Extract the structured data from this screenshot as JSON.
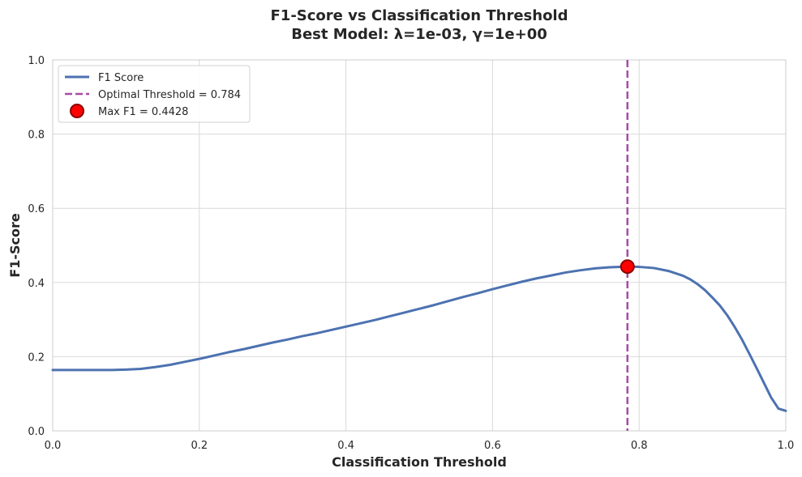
{
  "chart_data": {
    "type": "line",
    "title": "F1-Score vs Classification Threshold",
    "subtitle": "Best Model: λ=1e-03, γ=1e+00",
    "xlabel": "Classification Threshold",
    "ylabel": "F1-Score",
    "xlim": [
      0,
      1
    ],
    "ylim": [
      0,
      1
    ],
    "xticks": [
      "0.0",
      "0.2",
      "0.4",
      "0.6",
      "0.8",
      "1.0"
    ],
    "yticks": [
      "0.0",
      "0.2",
      "0.4",
      "0.6",
      "0.8",
      "1.0"
    ],
    "grid": true,
    "legend_position": "top-left",
    "series": [
      {
        "name": "F1 Score",
        "color": "#4c72b0",
        "x": [
          0.0,
          0.02,
          0.04,
          0.06,
          0.08,
          0.1,
          0.12,
          0.14,
          0.16,
          0.18,
          0.2,
          0.22,
          0.24,
          0.26,
          0.28,
          0.3,
          0.32,
          0.34,
          0.36,
          0.38,
          0.4,
          0.42,
          0.44,
          0.46,
          0.48,
          0.5,
          0.52,
          0.54,
          0.56,
          0.58,
          0.6,
          0.62,
          0.64,
          0.66,
          0.68,
          0.7,
          0.72,
          0.74,
          0.76,
          0.784,
          0.8,
          0.82,
          0.84,
          0.86,
          0.87,
          0.88,
          0.89,
          0.9,
          0.91,
          0.92,
          0.93,
          0.94,
          0.95,
          0.96,
          0.97,
          0.98,
          0.99,
          1.0
        ],
        "y": [
          0.164,
          0.164,
          0.164,
          0.164,
          0.164,
          0.165,
          0.167,
          0.172,
          0.178,
          0.186,
          0.194,
          0.203,
          0.212,
          0.22,
          0.229,
          0.238,
          0.246,
          0.255,
          0.263,
          0.272,
          0.281,
          0.29,
          0.299,
          0.309,
          0.319,
          0.329,
          0.339,
          0.35,
          0.361,
          0.371,
          0.382,
          0.392,
          0.402,
          0.411,
          0.419,
          0.427,
          0.433,
          0.438,
          0.441,
          0.4428,
          0.442,
          0.439,
          0.431,
          0.418,
          0.408,
          0.395,
          0.379,
          0.359,
          0.338,
          0.312,
          0.281,
          0.247,
          0.209,
          0.17,
          0.13,
          0.09,
          0.06,
          0.054
        ]
      }
    ],
    "optimal_threshold": {
      "label": "Optimal Threshold = 0.784",
      "x": 0.784,
      "color": "#a64ca6"
    },
    "max_point": {
      "label": "Max F1 = 0.4428",
      "x": 0.784,
      "y": 0.4428,
      "color": "#ff0000",
      "edge_color": "#8b0000"
    }
  }
}
